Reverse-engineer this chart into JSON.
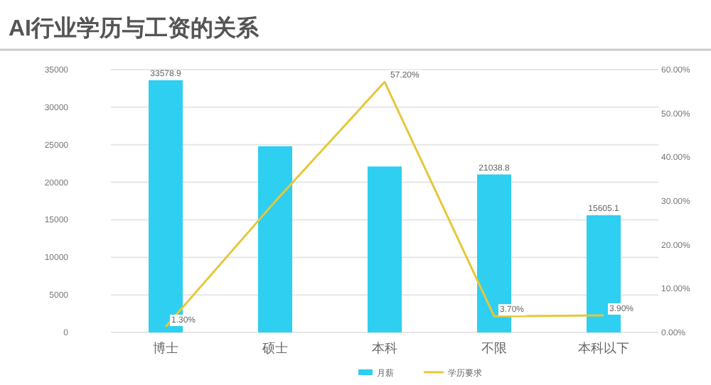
{
  "chart_data": {
    "type": "bar",
    "title": "AI行业学历与工资的关系",
    "categories": [
      "博士",
      "硕士",
      "本科",
      "不限",
      "本科以下"
    ],
    "series": [
      {
        "name": "月薪",
        "color": "#2ecff0",
        "values": [
          33578.9,
          24800,
          22100,
          21038.8,
          15605.1
        ],
        "value_labels": [
          "33578.9",
          null,
          null,
          "21038.8",
          "15605.1"
        ]
      },
      {
        "name": "学历要求",
        "type": "line",
        "axis": "y2",
        "color": "#e6c73a",
        "values": [
          1.3,
          29.9,
          57.2,
          3.7,
          3.9
        ],
        "value_labels": [
          "1.30%",
          null,
          "57.20%",
          "3.70%",
          "3.90%"
        ]
      }
    ],
    "ylim": [
      0,
      35000
    ],
    "yticks": [
      0,
      5000,
      10000,
      15000,
      20000,
      25000,
      30000,
      35000
    ],
    "y2lim": [
      0,
      60
    ],
    "y2ticks": [
      {
        "value": 0,
        "label": "0.00%"
      },
      {
        "value": 10,
        "label": "10.00%"
      },
      {
        "value": 20,
        "label": "20.00%"
      },
      {
        "value": 30,
        "label": "30.00%"
      },
      {
        "value": 40,
        "label": "40.00%"
      },
      {
        "value": 50,
        "label": "50.00%"
      },
      {
        "value": 60,
        "label": "60.00%"
      }
    ],
    "grid": "y",
    "legend": "bottom",
    "marker": "none"
  }
}
